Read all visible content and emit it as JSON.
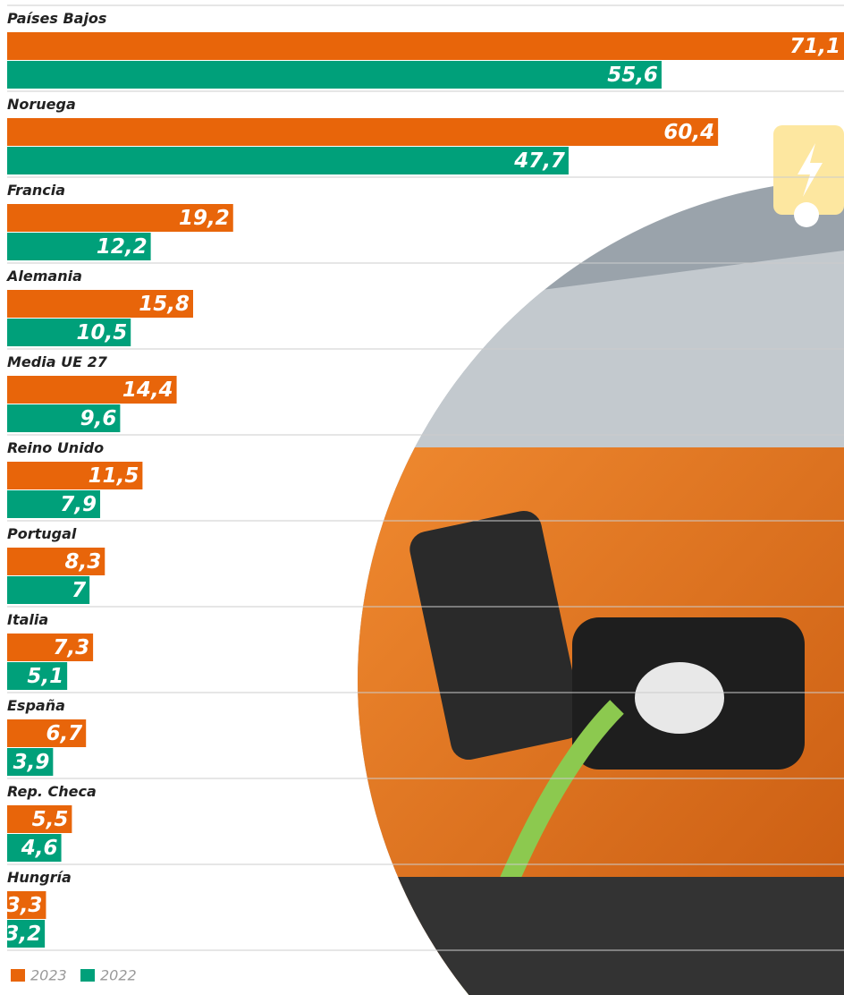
{
  "chart_data": {
    "type": "bar",
    "orientation": "horizontal",
    "categories": [
      "Países Bajos",
      "Noruega",
      "Francia",
      "Alemania",
      "Media UE 27",
      "Reino Unido",
      "Portugal",
      "Italia",
      "España",
      "Rep. Checa",
      "Hungría"
    ],
    "series": [
      {
        "name": "2023",
        "color": "#e8650a",
        "values": [
          71.1,
          60.4,
          19.2,
          15.8,
          14.4,
          11.5,
          8.3,
          7.3,
          6.7,
          5.5,
          3.3
        ],
        "value_labels": [
          "71,1",
          "60,4",
          "19,2",
          "15,8",
          "14,4",
          "11,5",
          "8,3",
          "7,3",
          "6,7",
          "5,5",
          "3,3"
        ]
      },
      {
        "name": "2022",
        "color": "#00a07a",
        "values": [
          55.6,
          47.7,
          12.2,
          10.5,
          9.6,
          7.9,
          7,
          5.1,
          3.9,
          4.6,
          3.2
        ],
        "value_labels": [
          "55,6",
          "47,7",
          "12,2",
          "10,5",
          "9,6",
          "7,9",
          "7",
          "5,1",
          "3,9",
          "4,6",
          "3,2"
        ]
      }
    ],
    "xlim": [
      0,
      71.1
    ]
  }
}
